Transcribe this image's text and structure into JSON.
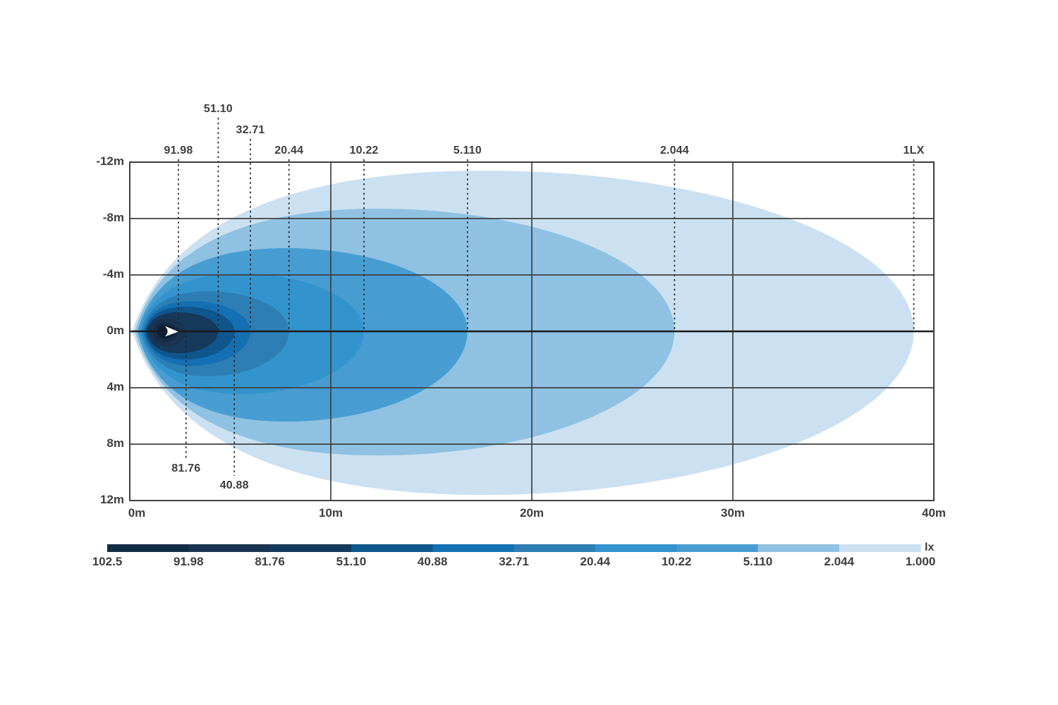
{
  "chart_data": {
    "type": "area",
    "subtype": "isolux-contour-map",
    "unit": "lx",
    "x_axis": {
      "label_unit": "m",
      "ticks": [
        {
          "label": "0m",
          "value": 0
        },
        {
          "label": "10m",
          "value": 10
        },
        {
          "label": "20m",
          "value": 20
        },
        {
          "label": "30m",
          "value": 30
        },
        {
          "label": "40m",
          "value": 40
        }
      ],
      "range": [
        0,
        40
      ],
      "grid": true
    },
    "y_axis": {
      "label_unit": "m",
      "ticks": [
        {
          "label": "-12m",
          "value": -12
        },
        {
          "label": "-8m",
          "value": -8
        },
        {
          "label": "-4m",
          "value": -4
        },
        {
          "label": "0m",
          "value": 0
        },
        {
          "label": "4m",
          "value": 4
        },
        {
          "label": "8m",
          "value": 8
        },
        {
          "label": "12m",
          "value": 12
        }
      ],
      "range": [
        -12,
        12
      ],
      "grid": true
    },
    "light_source": {
      "x_m": 2.1,
      "y_m": 0,
      "marker": "white-arrow"
    },
    "contours": [
      {
        "lux": "1.000",
        "callout_label": "1LX",
        "reach_m": 39.0,
        "left_m": 0.12,
        "up_m": 11.4,
        "down_m": 11.6,
        "color": "#CBE1F1",
        "callout": "top",
        "row": 2
      },
      {
        "lux": "2.044",
        "callout_label": "2.044",
        "reach_m": 27.1,
        "left_m": 0.25,
        "up_m": 8.7,
        "down_m": 8.8,
        "color": "#8FC1E2",
        "callout": "top",
        "row": 2
      },
      {
        "lux": "5.110",
        "callout_label": "5.110",
        "reach_m": 16.8,
        "left_m": 0.38,
        "up_m": 5.9,
        "down_m": 6.4,
        "color": "#479DD2",
        "callout": "top",
        "row": 2
      },
      {
        "lux": "10.22",
        "callout_label": "10.22",
        "reach_m": 11.65,
        "left_m": 0.48,
        "up_m": 4.1,
        "down_m": 4.45,
        "color": "#3394CD",
        "callout": "top",
        "row": 2
      },
      {
        "lux": "20.44",
        "callout_label": "20.44",
        "reach_m": 7.92,
        "left_m": 0.58,
        "up_m": 2.85,
        "down_m": 3.2,
        "color": "#2E7EB6",
        "callout": "top",
        "row": 2
      },
      {
        "lux": "32.71",
        "callout_label": "32.71",
        "reach_m": 6.0,
        "left_m": 0.68,
        "up_m": 2.15,
        "down_m": 2.45,
        "color": "#1470B2",
        "callout": "top",
        "row": 1
      },
      {
        "lux": "40.88",
        "callout_label": "40.88",
        "reach_m": 5.2,
        "left_m": 0.75,
        "up_m": 1.75,
        "down_m": 2.0,
        "color": "#0F568D",
        "callout": "bottom",
        "row": 1
      },
      {
        "lux": "51.10",
        "callout_label": "51.10",
        "reach_m": 4.4,
        "left_m": 0.83,
        "up_m": 1.35,
        "down_m": 1.55,
        "color": "#16395C",
        "callout": "top",
        "row": 0
      },
      {
        "lux": "81.76",
        "callout_label": "81.76",
        "reach_m": 2.8,
        "left_m": 0.98,
        "up_m": 0.9,
        "down_m": 1.05,
        "color": "#1A3350",
        "callout": "bottom",
        "row": 0
      },
      {
        "lux": "91.98",
        "callout_label": "91.98",
        "reach_m": 2.42,
        "left_m": 1.14,
        "up_m": 0.65,
        "down_m": 0.78,
        "color": "#142D47",
        "callout": "top",
        "row": 2
      },
      {
        "lux": "102.5",
        "callout_label": "102.5",
        "reach_m": 2.25,
        "left_m": 1.35,
        "up_m": 0.45,
        "down_m": 0.52,
        "color": "#0C2033",
        "callout": "none",
        "row": -1
      }
    ],
    "legend": {
      "unit": "lx",
      "boundary_labels": [
        "102.5",
        "91.98",
        "81.76",
        "51.10",
        "40.88",
        "32.71",
        "20.44",
        "10.22",
        "5.110",
        "2.044",
        "1.000"
      ],
      "segment_colors": [
        "#142D47",
        "#1A3350",
        "#16395C",
        "#0F568D",
        "#1470B2",
        "#2E7EB6",
        "#3394CD",
        "#479DD2",
        "#8FC1E2",
        "#CBE1F1"
      ],
      "position": "bottom"
    },
    "colors": {
      "grid": "#3F3F3F",
      "axis_zero": "#1A1A1A",
      "callout_dash": "#262626",
      "text": "#3E3E3E",
      "background": "#FFFFFF",
      "marker": "#FFFFFF"
    }
  }
}
